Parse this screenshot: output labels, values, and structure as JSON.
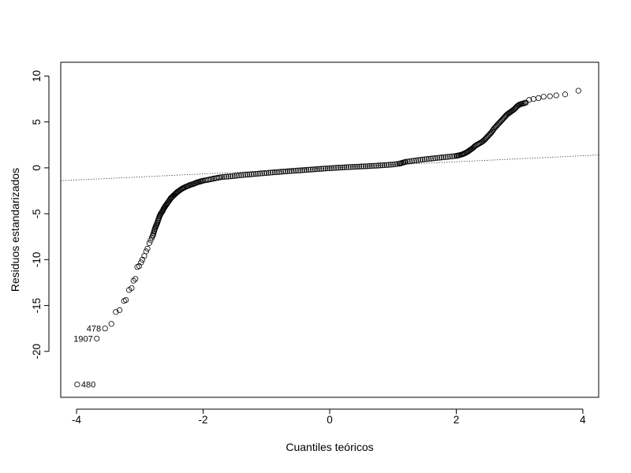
{
  "chart_data": {
    "type": "scatter",
    "title": "",
    "xlabel": "Cuantiles teóricos",
    "ylabel": "Residuos estandarizados",
    "xlim": [
      -4.25,
      4.25
    ],
    "ylim": [
      -25,
      11.5
    ],
    "x_ticks": [
      -4,
      -2,
      0,
      2,
      4
    ],
    "x_tick_labels": [
      "-4",
      "-2",
      "0",
      "2",
      "4"
    ],
    "y_ticks": [
      -20,
      -15,
      -10,
      -5,
      0,
      5,
      10
    ],
    "y_tick_labels": [
      "-20",
      "-15",
      "-10",
      "-5",
      "0",
      "5",
      "10"
    ],
    "grid": false,
    "reference_line": {
      "intercept": 0.0,
      "slope": 0.33,
      "style": "dotted"
    },
    "labeled_points": [
      {
        "label": "480",
        "x": -3.99,
        "y": -23.6
      },
      {
        "label": "1907",
        "x": -3.68,
        "y": -18.6
      },
      {
        "label": "478",
        "x": -3.55,
        "y": -17.5
      }
    ],
    "points": [
      [
        -3.45,
        -17.0
      ],
      [
        -3.38,
        -15.7
      ],
      [
        -3.32,
        -15.5
      ],
      [
        -3.25,
        -14.5
      ],
      [
        -3.22,
        -14.4
      ],
      [
        -3.17,
        -13.3
      ],
      [
        -3.13,
        -13.1
      ],
      [
        -3.1,
        -12.3
      ],
      [
        -3.07,
        -12.1
      ],
      [
        -3.04,
        -10.8
      ],
      [
        -3.01,
        -10.7
      ],
      [
        -2.98,
        -10.3
      ],
      [
        -2.96,
        -10.0
      ],
      [
        -2.93,
        -9.6
      ],
      [
        -2.9,
        -9.1
      ],
      [
        -2.88,
        -8.8
      ],
      [
        -2.85,
        -8.2
      ],
      [
        -2.83,
        -7.9
      ],
      [
        -2.81,
        -7.6
      ],
      [
        -2.79,
        -7.3
      ],
      [
        -2.77,
        -6.8
      ],
      [
        -2.75,
        -6.4
      ],
      [
        -2.73,
        -6.1
      ],
      [
        -2.71,
        -5.7
      ],
      [
        -2.69,
        -5.3
      ],
      [
        -2.67,
        -5.0
      ],
      [
        -2.64,
        -4.7
      ],
      [
        -2.62,
        -4.4
      ],
      [
        -2.6,
        -4.2
      ],
      [
        -2.57,
        -3.9
      ],
      [
        -2.54,
        -3.6
      ],
      [
        -2.51,
        -3.3
      ],
      [
        -2.48,
        -3.1
      ],
      [
        -2.45,
        -2.9
      ],
      [
        -2.42,
        -2.7
      ],
      [
        -2.38,
        -2.5
      ],
      [
        -2.34,
        -2.3
      ],
      [
        -2.3,
        -2.15
      ],
      [
        -2.25,
        -2.0
      ],
      [
        -2.2,
        -1.85
      ],
      [
        -2.15,
        -1.75
      ],
      [
        -2.1,
        -1.6
      ],
      [
        -2.05,
        -1.5
      ],
      [
        -2.0,
        -1.4
      ],
      [
        -1.92,
        -1.3
      ],
      [
        -1.85,
        -1.2
      ],
      [
        -1.78,
        -1.1
      ],
      [
        -1.7,
        -1.0
      ],
      [
        -1.6,
        -0.95
      ],
      [
        -1.5,
        -0.88
      ],
      [
        -1.4,
        -0.8
      ],
      [
        -1.3,
        -0.74
      ],
      [
        -1.2,
        -0.68
      ],
      [
        -1.1,
        -0.62
      ],
      [
        -1.0,
        -0.56
      ],
      [
        -0.9,
        -0.5
      ],
      [
        -0.8,
        -0.45
      ],
      [
        -0.7,
        -0.39
      ],
      [
        -0.6,
        -0.34
      ],
      [
        -0.5,
        -0.29
      ],
      [
        -0.4,
        -0.24
      ],
      [
        -0.3,
        -0.19
      ],
      [
        -0.2,
        -0.14
      ],
      [
        -0.1,
        -0.09
      ],
      [
        0.0,
        -0.04
      ],
      [
        0.1,
        0.0
      ],
      [
        0.2,
        0.04
      ],
      [
        0.3,
        0.08
      ],
      [
        0.4,
        0.11
      ],
      [
        0.5,
        0.15
      ],
      [
        0.6,
        0.18
      ],
      [
        0.7,
        0.22
      ],
      [
        0.8,
        0.26
      ],
      [
        0.9,
        0.31
      ],
      [
        1.0,
        0.36
      ],
      [
        1.1,
        0.45
      ],
      [
        1.15,
        0.55
      ],
      [
        1.2,
        0.65
      ],
      [
        1.3,
        0.75
      ],
      [
        1.4,
        0.84
      ],
      [
        1.5,
        0.93
      ],
      [
        1.6,
        1.0
      ],
      [
        1.7,
        1.08
      ],
      [
        1.8,
        1.15
      ],
      [
        1.9,
        1.22
      ],
      [
        2.0,
        1.3
      ],
      [
        2.05,
        1.38
      ],
      [
        2.1,
        1.48
      ],
      [
        2.14,
        1.6
      ],
      [
        2.18,
        1.75
      ],
      [
        2.22,
        1.95
      ],
      [
        2.26,
        2.15
      ],
      [
        2.3,
        2.4
      ],
      [
        2.35,
        2.6
      ],
      [
        2.4,
        2.8
      ],
      [
        2.44,
        3.0
      ],
      [
        2.48,
        3.3
      ],
      [
        2.52,
        3.6
      ],
      [
        2.56,
        3.9
      ],
      [
        2.6,
        4.3
      ],
      [
        2.64,
        4.6
      ],
      [
        2.68,
        4.9
      ],
      [
        2.72,
        5.2
      ],
      [
        2.76,
        5.5
      ],
      [
        2.8,
        5.8
      ],
      [
        2.84,
        6.0
      ],
      [
        2.88,
        6.2
      ],
      [
        2.92,
        6.4
      ],
      [
        2.96,
        6.7
      ],
      [
        3.0,
        6.9
      ],
      [
        3.05,
        7.0
      ],
      [
        3.1,
        7.1
      ],
      [
        3.15,
        7.4
      ],
      [
        3.22,
        7.5
      ],
      [
        3.3,
        7.6
      ],
      [
        3.38,
        7.75
      ],
      [
        3.48,
        7.8
      ],
      [
        3.58,
        7.9
      ],
      [
        3.72,
        8.0
      ],
      [
        3.93,
        8.4
      ]
    ]
  }
}
